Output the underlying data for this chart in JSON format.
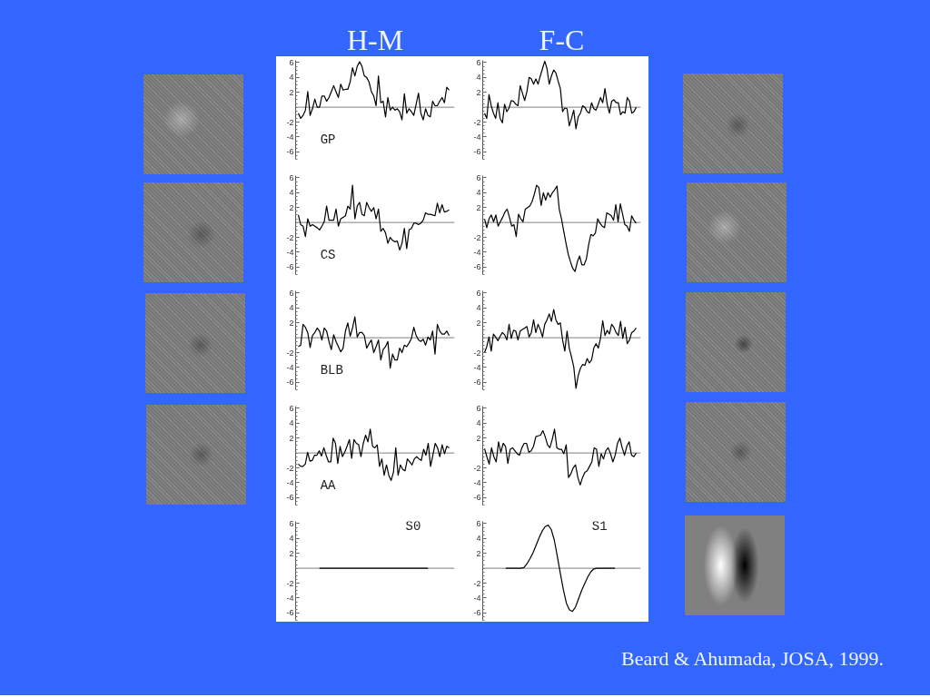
{
  "chart_data": [
    {
      "type": "line",
      "title": "H-M",
      "categories": [
        null,
        null,
        null,
        null,
        null,
        null,
        null,
        null,
        null,
        null,
        null,
        null,
        null,
        null,
        null,
        null,
        null,
        null,
        null,
        null,
        null,
        null,
        null,
        null,
        null,
        null,
        null,
        null,
        null,
        null,
        null,
        null,
        null,
        null,
        null,
        null,
        null,
        null,
        null,
        null,
        null,
        null,
        null,
        null,
        null,
        null,
        null,
        null,
        null,
        null,
        null,
        null,
        null,
        null,
        null,
        null,
        null,
        null,
        null,
        null,
        null,
        null,
        null,
        null,
        null
      ],
      "values": [
        -0.8,
        -1.5,
        -1.1,
        -0.4,
        2.1,
        -1.1,
        -0.2,
        1.1,
        0.0,
        0.0,
        1.5,
        1.5,
        0.8,
        1.3,
        2.1,
        2.9,
        2.1,
        1.3,
        3.1,
        2.3,
        2.4,
        2.4,
        3.4,
        5.3,
        4.2,
        5.5,
        6.1,
        5.5,
        4.2,
        4.0,
        3.4,
        2.1,
        1.5,
        0.2,
        4.2,
        0.6,
        0.8,
        -1.3,
        1.3,
        -0.4,
        0.0,
        -0.4,
        -0.2,
        -0.6,
        -1.7,
        1.8,
        -0.8,
        -0.2,
        -0.6,
        -1.1,
        0.4,
        1.9,
        -0.8,
        -1.7,
        -0.2,
        -1.1,
        -1.3,
        0.8,
        0.2,
        0.2,
        0.8,
        1.3,
        0.6,
        2.7,
        2.3
      ],
      "color": "#000000",
      "ylim": [
        -7,
        6.3
      ],
      "yticks": [
        -6,
        -4,
        -2,
        2,
        4,
        6
      ],
      "tick_labels": "y",
      "grid": false,
      "ref_lines": [
        {
          "axis": "y",
          "value": 0,
          "color": "#808080"
        }
      ],
      "annotations": [
        "GP"
      ]
    },
    {
      "type": "line",
      "title": "F-C",
      "categories": [
        null,
        null,
        null,
        null,
        null,
        null,
        null,
        null,
        null,
        null,
        null,
        null,
        null,
        null,
        null,
        null,
        null,
        null,
        null,
        null,
        null,
        null,
        null,
        null,
        null,
        null,
        null,
        null,
        null,
        null,
        null,
        null,
        null,
        null,
        null,
        null,
        null,
        null,
        null,
        null,
        null,
        null,
        null,
        null,
        null,
        null,
        null,
        null,
        null,
        null,
        null,
        null,
        null,
        null,
        null,
        null,
        null,
        null,
        null,
        null,
        null,
        null,
        null,
        null,
        null,
        null,
        null,
        null,
        null
      ],
      "values": [
        -0.8,
        -1.5,
        1.7,
        0.2,
        -0.8,
        -1.5,
        0.6,
        -1.5,
        -2.1,
        0.4,
        -0.6,
        -0.1,
        0.9,
        0.8,
        0.4,
        0.2,
        2.9,
        1.9,
        0.9,
        2.1,
        4.0,
        3.8,
        3.1,
        3.8,
        3.1,
        4.2,
        5.2,
        6.2,
        5.2,
        3.1,
        4.2,
        5.0,
        4.6,
        3.5,
        2.5,
        -0.6,
        -0.1,
        -0.2,
        -2.5,
        -1.5,
        -0.4,
        -2.9,
        -1.3,
        -0.8,
        0.2,
        0.0,
        -0.6,
        -0.8,
        0.6,
        -0.2,
        -0.4,
        0.4,
        1.3,
        0.6,
        2.5,
        0.4,
        -0.8,
        0.8,
        1.0,
        0.6,
        0.6,
        -1.0,
        -0.6,
        -0.8,
        1.3,
        0.8,
        -0.8,
        -0.6,
        0.0
      ],
      "color": "#000000",
      "ylim": [
        -7,
        6.3
      ],
      "yticks": [
        -6,
        -4,
        -2,
        2,
        4,
        6
      ],
      "tick_labels": "y",
      "grid": false,
      "ref_lines": [
        {
          "axis": "y",
          "value": 0,
          "color": "#808080"
        }
      ]
    },
    {
      "type": "line",
      "categories": [
        null,
        null,
        null,
        null,
        null,
        null,
        null,
        null,
        null,
        null,
        null,
        null,
        null,
        null,
        null,
        null,
        null,
        null,
        null,
        null,
        null,
        null,
        null,
        null,
        null,
        null,
        null,
        null,
        null,
        null,
        null,
        null,
        null,
        null,
        null,
        null,
        null,
        null,
        null,
        null,
        null,
        null,
        null,
        null,
        null,
        null,
        null,
        null,
        null,
        null,
        null,
        null,
        null,
        null,
        null,
        null,
        null,
        null,
        null,
        null,
        null,
        null,
        null,
        null,
        null
      ],
      "values": [
        1.0,
        -0.3,
        -0.5,
        -1.9,
        0.5,
        -0.5,
        -0.3,
        -0.5,
        -0.7,
        -1.0,
        -0.5,
        0.1,
        2.2,
        0.3,
        0.3,
        0.3,
        1.8,
        -0.5,
        0.5,
        0.7,
        0.9,
        2.2,
        1.8,
        5.0,
        0.5,
        2.2,
        2.7,
        1.1,
        0.9,
        2.7,
        2.0,
        1.5,
        2.0,
        0.5,
        1.8,
        -1.2,
        -0.8,
        -1.4,
        -2.8,
        -2.0,
        -2.4,
        -2.6,
        -2.5,
        -3.7,
        -2.8,
        -0.8,
        -3.5,
        -1.0,
        -0.8,
        -0.1,
        -0.1,
        -0.3,
        -0.1,
        0.3,
        1.3,
        1.1,
        1.1,
        1.0,
        0.9,
        2.6,
        1.3,
        2.4,
        1.4,
        1.5,
        1.7
      ],
      "color": "#000000",
      "ylim": [
        -7,
        6.3
      ],
      "yticks": [
        -6,
        -4,
        -2,
        2,
        4,
        6
      ],
      "tick_labels": "y",
      "grid": false,
      "ref_lines": [
        {
          "axis": "y",
          "value": 0,
          "color": "#808080"
        }
      ],
      "annotations": [
        "CS"
      ]
    },
    {
      "type": "line",
      "categories": [
        null,
        null,
        null,
        null,
        null,
        null,
        null,
        null,
        null,
        null,
        null,
        null,
        null,
        null,
        null,
        null,
        null,
        null,
        null,
        null,
        null,
        null,
        null,
        null,
        null,
        null,
        null,
        null,
        null,
        null,
        null,
        null,
        null,
        null,
        null,
        null,
        null,
        null,
        null,
        null,
        null,
        null,
        null,
        null,
        null,
        null,
        null,
        null,
        null,
        null,
        null,
        null,
        null,
        null,
        null,
        null,
        null,
        null,
        null,
        null,
        null,
        null,
        null,
        null,
        null,
        null,
        null,
        null
      ],
      "values": [
        0.5,
        -0.7,
        0.5,
        1.0,
        0.1,
        1.0,
        -0.5,
        0.1,
        0.7,
        1.4,
        1.8,
        0.7,
        -0.5,
        -0.3,
        -1.9,
        1.1,
        0.5,
        0.1,
        1.8,
        2.0,
        2.2,
        2.8,
        3.8,
        5.0,
        4.7,
        2.3,
        4.0,
        3.0,
        4.0,
        3.4,
        4.0,
        4.4,
        4.9,
        1.8,
        0.5,
        -1.2,
        -2.8,
        -4.3,
        -5.3,
        -6.2,
        -6.6,
        -5.3,
        -4.5,
        -5.7,
        -5.7,
        -4.9,
        -3.0,
        -1.6,
        -1.8,
        -1.4,
        0.5,
        -0.1,
        -0.5,
        -0.7,
        1.3,
        1.1,
        0.9,
        0.3,
        2.4,
        0.1,
        2.5,
        1.1,
        -0.3,
        -0.5,
        -1.2,
        0.9,
        0.3,
        -0.1
      ],
      "color": "#000000",
      "ylim": [
        -7,
        6.3
      ],
      "yticks": [
        -6,
        -4,
        -2,
        2,
        4,
        6
      ],
      "tick_labels": "y",
      "grid": false,
      "ref_lines": [
        {
          "axis": "y",
          "value": 0,
          "color": "#808080"
        }
      ]
    },
    {
      "type": "line",
      "categories": [
        null,
        null,
        null,
        null,
        null,
        null,
        null,
        null,
        null,
        null,
        null,
        null,
        null,
        null,
        null,
        null,
        null,
        null,
        null,
        null,
        null,
        null,
        null,
        null,
        null,
        null,
        null,
        null,
        null,
        null,
        null,
        null,
        null,
        null,
        null,
        null,
        null,
        null,
        null,
        null,
        null,
        null,
        null,
        null,
        null,
        null,
        null,
        null,
        null,
        null,
        null,
        null,
        null,
        null,
        null,
        null,
        null,
        null,
        null,
        null,
        null,
        null,
        null,
        null,
        null
      ],
      "values": [
        -1.2,
        -1.0,
        1.8,
        1.4,
        0.7,
        -1.3,
        0.3,
        0.7,
        1.3,
        0.9,
        -0.3,
        1.3,
        0.9,
        -0.5,
        -1.6,
        0.4,
        -0.5,
        -1.2,
        -1.9,
        -1.4,
        0.9,
        2.0,
        0.2,
        1.3,
        2.8,
        0.1,
        0.7,
        0.7,
        0.3,
        -1.4,
        -0.8,
        -0.3,
        -2.0,
        -1.2,
        -0.3,
        -3.0,
        -1.6,
        -1.2,
        -0.5,
        -4.1,
        -2.2,
        -3.0,
        -3.0,
        -1.4,
        -2.0,
        -1.0,
        -1.2,
        -0.7,
        -0.1,
        1.4,
        0.3,
        -0.3,
        -0.5,
        -0.2,
        -1.0,
        0.1,
        -0.3,
        0.9,
        -2.2,
        1.8,
        0.9,
        0.5,
        0.5,
        0.9,
        0.3
      ],
      "color": "#000000",
      "ylim": [
        -7,
        6.3
      ],
      "yticks": [
        -6,
        -4,
        -2,
        2,
        4,
        6
      ],
      "tick_labels": "y",
      "grid": false,
      "ref_lines": [
        {
          "axis": "y",
          "value": 0,
          "color": "#808080"
        }
      ],
      "annotations": [
        "BLB"
      ]
    },
    {
      "type": "line",
      "categories": [
        null,
        null,
        null,
        null,
        null,
        null,
        null,
        null,
        null,
        null,
        null,
        null,
        null,
        null,
        null,
        null,
        null,
        null,
        null,
        null,
        null,
        null,
        null,
        null,
        null,
        null,
        null,
        null,
        null,
        null,
        null,
        null,
        null,
        null,
        null,
        null,
        null,
        null,
        null,
        null,
        null,
        null,
        null,
        null,
        null,
        null,
        null,
        null,
        null,
        null,
        null,
        null,
        null,
        null,
        null,
        null,
        null,
        null,
        null,
        null,
        null,
        null,
        null,
        null,
        null,
        null,
        null,
        null,
        null
      ],
      "values": [
        -2.0,
        -1.2,
        0.1,
        -1.8,
        0.5,
        0.1,
        -0.4,
        0.2,
        0.7,
        0.4,
        -0.3,
        1.8,
        -0.1,
        1.0,
        0.9,
        -0.3,
        0.9,
        1.1,
        1.3,
        1.5,
        0.1,
        0.7,
        2.4,
        0.7,
        1.8,
        1.1,
        0.1,
        1.8,
        2.4,
        3.2,
        2.2,
        3.8,
        2.4,
        1.8,
        2.0,
        -0.3,
        -1.8,
        0.9,
        -1.4,
        -2.6,
        -3.9,
        -6.8,
        -5.1,
        -4.1,
        -3.6,
        -3.7,
        -2.8,
        -3.4,
        -3.0,
        -1.4,
        -0.8,
        -1.4,
        -0.1,
        2.3,
        0.3,
        1.0,
        0.5,
        1.8,
        1.4,
        0.7,
        0.3,
        2.2,
        -0.1,
        1.4,
        -0.8,
        -0.3,
        0.7,
        0.9,
        1.3
      ],
      "color": "#000000",
      "ylim": [
        -7,
        6.3
      ],
      "yticks": [
        -6,
        -4,
        -2,
        2,
        4,
        6
      ],
      "tick_labels": "y",
      "grid": false,
      "ref_lines": [
        {
          "axis": "y",
          "value": 0,
          "color": "#808080"
        }
      ]
    },
    {
      "type": "line",
      "categories": [
        null,
        null,
        null,
        null,
        null,
        null,
        null,
        null,
        null,
        null,
        null,
        null,
        null,
        null,
        null,
        null,
        null,
        null,
        null,
        null,
        null,
        null,
        null,
        null,
        null,
        null,
        null,
        null,
        null,
        null,
        null,
        null,
        null,
        null,
        null,
        null,
        null,
        null,
        null,
        null,
        null,
        null,
        null,
        null,
        null,
        null,
        null,
        null,
        null,
        null,
        null,
        null,
        null,
        null,
        null,
        null,
        null,
        null,
        null,
        null,
        null,
        null,
        null,
        null,
        null,
        null
      ],
      "values": [
        -1.5,
        -1.8,
        -1.8,
        -1.5,
        0.1,
        -1.1,
        -1.0,
        -0.3,
        -0.3,
        0.3,
        -0.4,
        0.7,
        -0.3,
        -1.2,
        -1.2,
        2.0,
        1.3,
        -1.4,
        0.9,
        -0.5,
        0.1,
        0.9,
        1.8,
        -0.7,
        1.8,
        1.3,
        1.1,
        -0.5,
        1.3,
        2.4,
        1.5,
        3.2,
        0.9,
        0.7,
        1.1,
        -1.8,
        -0.8,
        -3.0,
        -1.6,
        -3.0,
        -3.7,
        -2.6,
        0.7,
        -3.0,
        -1.6,
        -2.2,
        -2.4,
        -0.8,
        -1.2,
        -1.6,
        -0.8,
        -0.5,
        -0.8,
        -1.0,
        0.5,
        -0.3,
        1.3,
        -1.8,
        -0.3,
        1.3,
        0.7,
        -0.5,
        1.1,
        -0.1,
        0.9,
        0.7
      ],
      "color": "#000000",
      "ylim": [
        -7,
        6.3
      ],
      "yticks": [
        -6,
        -4,
        -2,
        2,
        4,
        6
      ],
      "tick_labels": "y",
      "grid": false,
      "ref_lines": [
        {
          "axis": "y",
          "value": 0,
          "color": "#808080"
        }
      ],
      "annotations": [
        "AA"
      ]
    },
    {
      "type": "line",
      "categories": [
        null,
        null,
        null,
        null,
        null,
        null,
        null,
        null,
        null,
        null,
        null,
        null,
        null,
        null,
        null,
        null,
        null,
        null,
        null,
        null,
        null,
        null,
        null,
        null,
        null,
        null,
        null,
        null,
        null,
        null,
        null,
        null,
        null,
        null,
        null,
        null,
        null,
        null,
        null,
        null,
        null,
        null,
        null,
        null,
        null,
        null,
        null,
        null,
        null,
        null,
        null,
        null,
        null,
        null,
        null,
        null,
        null,
        null,
        null,
        null,
        null,
        null,
        null,
        null,
        null,
        null
      ],
      "values": [
        0.6,
        -0.5,
        -1.5,
        0.7,
        -0.5,
        -1.2,
        1.5,
        0.1,
        1.3,
        0.9,
        -1.4,
        0.5,
        0.7,
        0.3,
        -0.1,
        -0.3,
        0.7,
        1.3,
        1.3,
        0.1,
        0.3,
        0.9,
        2.2,
        2.3,
        2.4,
        3.0,
        2.2,
        1.1,
        0.7,
        1.8,
        3.2,
        0.7,
        0.5,
        0.5,
        -0.1,
        1.1,
        -3.3,
        -2.8,
        -2.0,
        -1.6,
        -3.3,
        -4.3,
        -3.3,
        -2.6,
        -2.4,
        -1.8,
        -1.2,
        0.7,
        0.5,
        -1.8,
        -0.1,
        -0.8,
        0.3,
        0.7,
        -0.1,
        -1.2,
        -0.3,
        1.3,
        2.0,
        0.7,
        -0.3,
        0.9,
        1.5,
        -0.3,
        -0.5,
        0.0
      ],
      "color": "#000000",
      "ylim": [
        -7,
        6.3
      ],
      "yticks": [
        -6,
        -4,
        -2,
        2,
        4,
        6
      ],
      "tick_labels": "y",
      "grid": false,
      "ref_lines": [
        {
          "axis": "y",
          "value": 0,
          "color": "#808080"
        }
      ]
    },
    {
      "type": "line",
      "categories": [
        null,
        null,
        null,
        null,
        null,
        null,
        null,
        null,
        null,
        null,
        null,
        null,
        null,
        null,
        null,
        null,
        null,
        null,
        null,
        null,
        null,
        null,
        null,
        null,
        null,
        null,
        null,
        null,
        null,
        null,
        null,
        null,
        null,
        null,
        null,
        null,
        null,
        null,
        null,
        null,
        null,
        null,
        null,
        null,
        null,
        null,
        null,
        null,
        null,
        null,
        null
      ],
      "values": [
        null,
        null,
        null,
        null,
        null,
        null,
        null,
        0,
        0,
        0,
        0,
        0,
        0,
        0,
        0,
        0,
        0,
        0,
        0,
        0,
        0,
        0,
        0,
        0,
        0,
        0,
        0,
        0,
        0,
        0,
        0,
        0,
        0,
        0,
        0,
        0,
        0,
        0,
        0,
        0,
        0,
        0,
        0,
        0,
        null,
        null,
        null,
        null,
        null,
        null,
        null
      ],
      "color": "#000000",
      "ylim": [
        -7,
        6.3
      ],
      "yticks": [
        -6,
        -4,
        -2,
        2,
        4,
        6
      ],
      "tick_labels": "y",
      "grid": false,
      "ref_lines": [
        {
          "axis": "y",
          "value": 0,
          "color": "#808080"
        }
      ],
      "annotations": [
        "S0"
      ]
    },
    {
      "type": "line",
      "categories": [
        null,
        null,
        null,
        null,
        null,
        null,
        null,
        null,
        null,
        null,
        null,
        null,
        null,
        null,
        null,
        null,
        null,
        null,
        null,
        null,
        null,
        null,
        null,
        null,
        null,
        null,
        null,
        null,
        null,
        null,
        null,
        null,
        null,
        null,
        null,
        null,
        null,
        null,
        null,
        null,
        null,
        null,
        null,
        null,
        null,
        null,
        null,
        null,
        null,
        null,
        null
      ],
      "values": [
        null,
        null,
        null,
        null,
        null,
        null,
        null,
        0,
        0,
        0,
        0,
        0,
        0,
        0.1,
        0.6,
        1.3,
        2.1,
        3.1,
        4.1,
        5.0,
        5.6,
        5.8,
        5.2,
        3.8,
        1.6,
        -0.7,
        -2.9,
        -4.7,
        -5.6,
        -5.8,
        -5.2,
        -4.1,
        -3.0,
        -2.1,
        -1.2,
        -0.5,
        -0.1,
        0,
        0,
        0,
        0,
        0,
        0,
        0,
        null,
        null,
        null,
        null,
        null,
        null,
        null
      ],
      "color": "#000000",
      "ylim": [
        -7,
        6.3
      ],
      "yticks": [
        -6,
        -4,
        -2,
        2,
        4,
        6
      ],
      "tick_labels": "y",
      "grid": false,
      "ref_lines": [
        {
          "axis": "y",
          "value": 0,
          "color": "#808080"
        }
      ],
      "annotations": [
        "S1",
        "Beard & Ahumada, JOSA, 1999."
      ]
    }
  ]
}
